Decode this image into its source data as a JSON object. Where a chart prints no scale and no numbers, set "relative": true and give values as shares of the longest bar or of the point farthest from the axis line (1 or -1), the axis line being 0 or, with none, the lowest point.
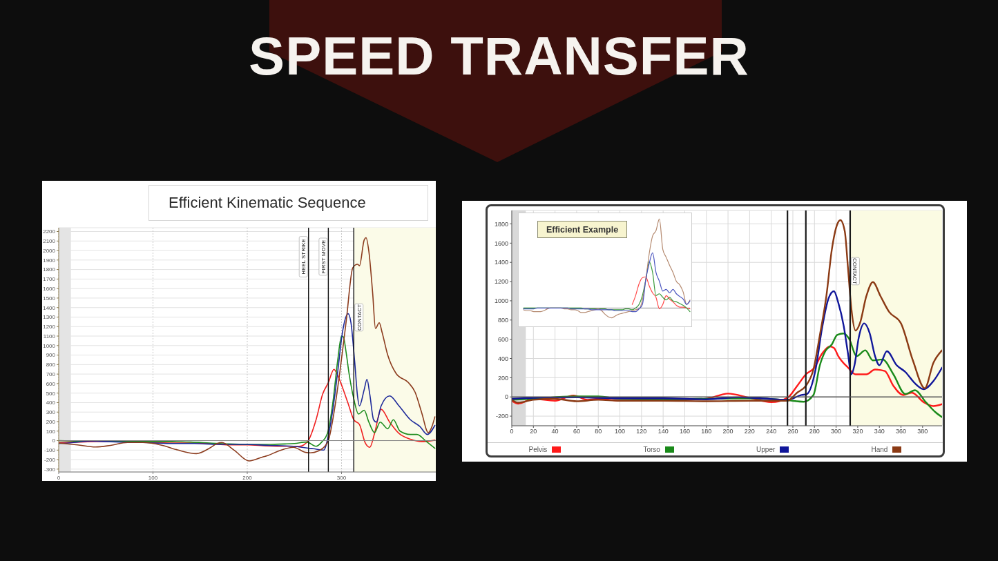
{
  "chart_data": [
    {
      "type": "other",
      "title": "SPEED TRANSFER"
    },
    {
      "type": "line",
      "title": "Efficient Kinematic Sequence",
      "xlim": [
        0,
        400
      ],
      "xticks": [
        0,
        100,
        200,
        300
      ],
      "ylim": [
        -330,
        2240
      ],
      "yticks": [
        -300,
        -200,
        -100,
        0,
        100,
        200,
        300,
        400,
        500,
        600,
        700,
        800,
        900,
        1000,
        1100,
        1200,
        1300,
        1400,
        1500,
        1600,
        1700,
        1800,
        1900,
        2000,
        2100,
        2200
      ],
      "grid": true,
      "bands": [
        {
          "axis": "x",
          "from": 0,
          "to": 13,
          "color": "#e4e4e4"
        },
        {
          "axis": "x",
          "from": 313,
          "to": 400,
          "color": "#fbfbe8"
        }
      ],
      "ref_lines": [
        {
          "axis": "x",
          "value": 265,
          "label": "HEEL STRIKE",
          "color": "#111111"
        },
        {
          "axis": "x",
          "value": 286,
          "label": "FIRST MOVE",
          "color": "#111111"
        },
        {
          "axis": "x",
          "value": 313,
          "label": "CONTACT",
          "color": "#111111"
        },
        {
          "axis": "y",
          "value": 0,
          "color": "#808080"
        }
      ],
      "series": [
        {
          "color": "#f02020",
          "x": [
            0,
            20,
            40,
            60,
            80,
            100,
            120,
            140,
            160,
            180,
            200,
            220,
            240,
            255,
            260,
            265,
            273,
            280,
            286,
            292,
            295,
            301,
            307,
            313,
            319,
            325,
            330,
            335,
            342,
            351,
            361,
            373,
            385,
            399
          ],
          "values": [
            -20,
            -15,
            -10,
            -10,
            -15,
            -20,
            -25,
            -25,
            -30,
            -45,
            -45,
            -55,
            -60,
            -60,
            -45,
            5,
            220,
            490,
            610,
            750,
            705,
            560,
            390,
            220,
            170,
            -20,
            -70,
            75,
            330,
            195,
            75,
            15,
            -10,
            5
          ]
        },
        {
          "color": "#1e8c1e",
          "x": [
            0,
            20,
            40,
            60,
            80,
            100,
            120,
            140,
            160,
            180,
            200,
            220,
            240,
            250,
            263,
            273,
            279,
            285,
            291,
            296,
            300,
            302,
            305,
            308,
            313,
            318,
            324,
            329,
            335,
            341,
            349,
            355,
            362,
            373,
            380,
            390,
            399
          ],
          "values": [
            0,
            -5,
            -5,
            -5,
            -10,
            -10,
            -10,
            -15,
            -25,
            -35,
            -40,
            -40,
            -35,
            -30,
            -15,
            -60,
            -15,
            75,
            415,
            850,
            1100,
            1090,
            920,
            705,
            440,
            280,
            320,
            195,
            85,
            195,
            125,
            220,
            100,
            65,
            65,
            -10,
            -80
          ]
        },
        {
          "color": "#1e2a9a",
          "x": [
            0,
            10,
            20,
            34,
            50,
            66,
            90,
            118,
            144,
            170,
            196,
            223,
            249,
            265,
            270,
            281,
            286,
            291,
            296,
            301,
            307,
            310,
            314,
            317,
            319,
            324,
            327,
            330,
            334,
            337,
            342,
            351,
            361,
            373,
            383,
            391,
            399
          ],
          "values": [
            -30,
            -25,
            -15,
            -5,
            -10,
            -15,
            -20,
            -30,
            -30,
            -40,
            -40,
            -50,
            -60,
            -80,
            -85,
            -100,
            50,
            340,
            730,
            1140,
            1335,
            1240,
            825,
            465,
            365,
            535,
            645,
            485,
            220,
            195,
            365,
            470,
            365,
            220,
            150,
            65,
            160
          ]
        },
        {
          "color": "#8c3c1e",
          "x": [
            0,
            20,
            39,
            55,
            73,
            89,
            110,
            126,
            146,
            160,
            168,
            173,
            186,
            202,
            217,
            221,
            233,
            249,
            262,
            267,
            275,
            283,
            286,
            292,
            298,
            305,
            312,
            317,
            319,
            324,
            326,
            329,
            333,
            336,
            340,
            343,
            349,
            358,
            371,
            378,
            385,
            392,
            396,
            399
          ],
          "values": [
            -25,
            -45,
            -67,
            -50,
            -20,
            -20,
            -50,
            -98,
            -137,
            -80,
            -30,
            -20,
            -100,
            -214,
            -170,
            -160,
            -110,
            -70,
            -124,
            -128,
            -110,
            -50,
            0,
            295,
            705,
            1260,
            1820,
            1855,
            1840,
            2110,
            2135,
            1990,
            1555,
            1180,
            1240,
            1140,
            900,
            705,
            610,
            510,
            295,
            85,
            150,
            250
          ]
        }
      ]
    },
    {
      "type": "line",
      "xlim": [
        0,
        398
      ],
      "xticks": [
        0,
        20,
        40,
        60,
        80,
        100,
        120,
        140,
        160,
        180,
        200,
        220,
        240,
        260,
        280,
        300,
        320,
        340,
        360,
        380
      ],
      "ylim": [
        -300,
        1940
      ],
      "yticks": [
        -200,
        0,
        200,
        400,
        600,
        800,
        1000,
        1200,
        1400,
        1600,
        1800
      ],
      "grid": true,
      "legend": "bottom",
      "bands": [
        {
          "axis": "x",
          "from": 0,
          "to": 13,
          "color": "#d9d9d9"
        },
        {
          "axis": "x",
          "from": 313,
          "to": 398,
          "color": "#fbfbe3"
        }
      ],
      "ref_lines": [
        {
          "axis": "x",
          "value": 255,
          "color": "#1a1a1a"
        },
        {
          "axis": "x",
          "value": 272,
          "color": "#1a1a1a"
        },
        {
          "axis": "x",
          "value": 313,
          "label": "CONTACT",
          "color": "#1a1a1a"
        },
        {
          "axis": "y",
          "value": 0,
          "color": "#555555"
        }
      ],
      "series": [
        {
          "name": "Pelvis",
          "color": "#ff1a1a",
          "x": [
            0,
            6,
            20,
            40,
            57,
            70,
            80,
            100,
            120,
            160,
            180,
            200,
            220,
            240,
            255,
            264,
            272,
            280,
            287,
            294,
            298,
            302,
            311,
            318,
            328,
            336,
            345,
            353,
            362,
            370,
            381,
            390,
            398
          ],
          "values": [
            -40,
            -70,
            -20,
            -40,
            15,
            -30,
            -20,
            -40,
            -35,
            -30,
            -20,
            35,
            -10,
            -55,
            -10,
            115,
            235,
            305,
            450,
            525,
            510,
            425,
            305,
            235,
            235,
            285,
            270,
            115,
            20,
            45,
            -55,
            -95,
            -75
          ]
        },
        {
          "name": "Torso",
          "color": "#1a8a1a",
          "x": [
            0,
            20,
            57,
            80,
            100,
            140,
            180,
            220,
            255,
            270,
            279,
            285,
            290,
            296,
            301,
            307,
            312,
            319,
            327,
            334,
            343,
            353,
            364,
            373,
            383,
            392,
            398
          ],
          "values": [
            -30,
            -20,
            5,
            5,
            -20,
            -25,
            -20,
            -15,
            -35,
            -50,
            20,
            330,
            475,
            545,
            645,
            660,
            605,
            425,
            485,
            380,
            390,
            235,
            30,
            70,
            -55,
            -160,
            -210
          ]
        },
        {
          "name": "Upper",
          "color": "#10169a",
          "x": [
            0,
            20,
            60,
            100,
            140,
            180,
            210,
            230,
            255,
            268,
            273,
            281,
            287,
            293,
            298,
            302,
            307,
            311,
            314,
            317,
            321,
            326,
            331,
            336,
            340,
            347,
            356,
            364,
            373,
            381,
            390,
            398
          ],
          "values": [
            -20,
            -10,
            -5,
            -15,
            -15,
            -25,
            -5,
            -15,
            -30,
            20,
            30,
            285,
            715,
            1025,
            1100,
            980,
            740,
            450,
            235,
            330,
            620,
            765,
            665,
            425,
            330,
            475,
            330,
            260,
            140,
            80,
            165,
            305
          ]
        },
        {
          "name": "Hand",
          "color": "#8b3a14",
          "x": [
            0,
            6,
            20,
            40,
            60,
            80,
            100,
            140,
            180,
            220,
            255,
            264,
            272,
            279,
            285,
            291,
            296,
            301,
            304,
            308,
            311,
            314,
            318,
            322,
            328,
            334,
            341,
            349,
            360,
            371,
            382,
            390,
            398
          ],
          "values": [
            -30,
            -60,
            -30,
            -20,
            -45,
            -30,
            -40,
            -40,
            -45,
            -40,
            -40,
            45,
            115,
            285,
            645,
            1050,
            1530,
            1795,
            1840,
            1725,
            1340,
            930,
            690,
            765,
            1050,
            1195,
            1050,
            885,
            765,
            380,
            90,
            355,
            485
          ]
        }
      ]
    },
    {
      "type": "line",
      "title": "Efficient Example",
      "relative": true,
      "categories": [
        null,
        null,
        null,
        null,
        null,
        null,
        null,
        null,
        null,
        null,
        null,
        null,
        null,
        null,
        null,
        null,
        null,
        null,
        null,
        null,
        null,
        null,
        null,
        null,
        null,
        null,
        null,
        null,
        null,
        null,
        null,
        null,
        null,
        null,
        null,
        null,
        null,
        null,
        null,
        null,
        null,
        null,
        null,
        null,
        null,
        null,
        null,
        null,
        null,
        null
      ],
      "series": [
        {
          "color": "#ff4a4a",
          "values": [
            null,
            null,
            null,
            null,
            null,
            null,
            null,
            null,
            null,
            null,
            null,
            null,
            null,
            null,
            null,
            null,
            null,
            null,
            null,
            null,
            null,
            null,
            null,
            null,
            null,
            null,
            null,
            null,
            null,
            null,
            null,
            null,
            0.04,
            0.14,
            0.27,
            0.34,
            0.35,
            0.25,
            0.17,
            0.12,
            -0.01,
            0.04,
            0.14,
            0.1,
            0.07,
            0.03,
            0.01,
            0.01,
            0,
            -0.01
          ]
        },
        {
          "color": "#3a9a3a",
          "values": [
            0,
            0,
            0,
            0,
            0,
            0,
            0,
            0,
            0,
            0,
            0,
            0,
            0,
            0,
            0,
            0,
            0,
            0,
            -0.01,
            -0.01,
            -0.01,
            -0.01,
            -0.01,
            -0.01,
            -0.01,
            -0.02,
            -0.02,
            -0.02,
            -0.02,
            -0.02,
            -0.01,
            -0.01,
            -0.02,
            0,
            0.04,
            0.14,
            0.32,
            0.52,
            0.4,
            0.14,
            0.16,
            0.12,
            0.09,
            0.12,
            0.08,
            0.07,
            0.05,
            0.03,
            0,
            -0.04
          ]
        },
        {
          "color": "#b58a70",
          "values": [
            -0.02,
            -0.03,
            -0.03,
            -0.04,
            -0.04,
            -0.04,
            -0.03,
            -0.01,
            0,
            0,
            0,
            0,
            -0.01,
            -0.01,
            -0.02,
            -0.02,
            -0.03,
            -0.05,
            -0.05,
            -0.04,
            -0.03,
            -0.02,
            -0.01,
            -0.03,
            -0.07,
            -0.1,
            -0.11,
            -0.09,
            -0.07,
            -0.06,
            -0.05,
            -0.04,
            -0.03,
            -0.02,
            -0.01,
            0.09,
            0.32,
            0.61,
            0.81,
            0.87,
            1,
            0.66,
            0.57,
            0.48,
            0.4,
            0.3,
            0.26,
            0.18,
            0.04,
            0.09
          ]
        },
        {
          "color": "#4a55bf",
          "values": [
            -0.01,
            -0.01,
            -0.01,
            -0.01,
            0,
            0,
            0,
            0,
            0,
            0,
            0,
            0,
            0,
            0,
            -0.01,
            -0.01,
            -0.01,
            -0.01,
            -0.01,
            -0.01,
            -0.02,
            -0.02,
            -0.02,
            -0.02,
            -0.02,
            -0.02,
            -0.02,
            -0.03,
            -0.03,
            -0.03,
            -0.03,
            -0.03,
            -0.04,
            -0.04,
            -0.01,
            0.04,
            0.32,
            0.5,
            0.62,
            0.4,
            0.3,
            0.19,
            0.21,
            0.17,
            0.21,
            0.16,
            0.13,
            0.1,
            0.04,
            0.08
          ]
        }
      ]
    }
  ]
}
